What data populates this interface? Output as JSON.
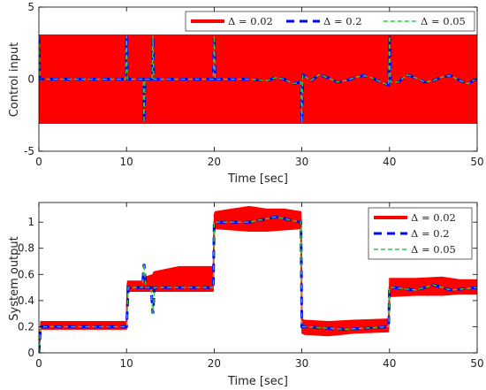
{
  "chart_data": [
    {
      "type": "line",
      "xlabel": "Time [sec]",
      "ylabel": "Control input",
      "xlim": [
        0,
        50
      ],
      "ylim": [
        -5,
        5
      ],
      "xticks": [
        "0",
        "10",
        "20",
        "30",
        "40",
        "50"
      ],
      "yticks": [
        "-5",
        "0",
        "5"
      ],
      "legend_position": "top-right",
      "legend_orientation": "horizontal",
      "grid": false,
      "series": [
        {
          "name": "Δ = 0.02",
          "color": "#ff0000",
          "style": "solid",
          "note_band": [
            -3.1,
            3.1
          ],
          "x": [
            0,
            10,
            12,
            13,
            20,
            25,
            30,
            35,
            40,
            45,
            50
          ],
          "y": [
            0,
            0,
            0,
            0,
            0,
            0,
            0,
            0,
            0,
            0,
            0
          ]
        },
        {
          "name": "Δ = 0.2",
          "color": "#0000ff",
          "style": "dashed",
          "x": [
            0,
            0.1,
            1,
            9.9,
            10,
            10.1,
            11.9,
            12,
            12.1,
            12.9,
            13,
            13.1,
            19.9,
            20,
            20.1,
            24,
            26,
            27,
            28,
            29,
            29.9,
            30,
            30.1,
            31,
            32,
            33,
            34,
            35,
            36,
            37,
            38,
            39,
            39.9,
            40,
            40.1,
            41,
            42,
            43,
            44,
            45,
            46,
            47,
            48,
            49,
            50
          ],
          "y": [
            3.0,
            0,
            0,
            0,
            3.0,
            0,
            0,
            -3.0,
            0,
            0,
            3.0,
            0,
            0,
            3.0,
            0,
            0,
            -0.1,
            0.1,
            0.0,
            -0.3,
            -0.2,
            -3.0,
            0.3,
            -0.1,
            0.3,
            0.1,
            -0.2,
            -0.1,
            0.1,
            0.25,
            0.1,
            -0.2,
            -0.4,
            3.0,
            -0.2,
            -0.2,
            0.3,
            0.1,
            -0.2,
            -0.1,
            0.15,
            0.25,
            -0.1,
            -0.3,
            0.1
          ]
        },
        {
          "name": "Δ = 0.05",
          "color": "#2ecc40",
          "style": "dashed",
          "x": [
            0,
            0.1,
            1,
            9.9,
            10,
            10.1,
            11.9,
            12,
            12.1,
            12.9,
            13,
            13.1,
            19.9,
            20,
            20.1,
            24,
            26,
            27,
            28,
            29,
            29.9,
            30,
            30.1,
            31,
            32,
            33,
            34,
            35,
            36,
            37,
            38,
            39,
            39.9,
            40,
            40.1,
            41,
            42,
            43,
            44,
            45,
            46,
            47,
            48,
            49,
            50
          ],
          "y": [
            3.0,
            0,
            0,
            0,
            3.0,
            0,
            0,
            -3.0,
            0,
            0,
            3.0,
            0,
            0,
            3.0,
            0,
            0,
            -0.1,
            0.1,
            0.0,
            -0.3,
            -0.2,
            -3.0,
            0.3,
            -0.1,
            0.3,
            0.1,
            -0.2,
            -0.1,
            0.1,
            0.25,
            0.1,
            -0.2,
            -0.4,
            3.0,
            -0.2,
            -0.2,
            0.3,
            0.1,
            -0.2,
            -0.1,
            0.15,
            0.25,
            -0.1,
            -0.3,
            0.1
          ]
        }
      ]
    },
    {
      "type": "line",
      "xlabel": "Time [sec]",
      "ylabel": "System output",
      "xlim": [
        0,
        50
      ],
      "ylim": [
        0,
        1.15
      ],
      "xticks": [
        "0",
        "10",
        "20",
        "30",
        "40",
        "50"
      ],
      "yticks": [
        "0",
        "0.2",
        "0.4",
        "0.6",
        "0.8",
        "1"
      ],
      "legend_position": "top-right",
      "legend_orientation": "vertical",
      "grid": false,
      "series": [
        {
          "name": "Δ = 0.02",
          "color": "#ff0000",
          "style": "solid",
          "x": [
            0,
            0.2,
            10,
            10.1,
            12,
            12.1,
            13,
            13.1,
            16,
            17,
            19.9,
            20,
            20.1,
            22,
            24,
            26,
            28,
            29.9,
            30,
            30.3,
            33,
            36,
            39.9,
            40,
            40.2,
            43,
            46,
            48,
            50
          ],
          "y": [
            0,
            0.2,
            0.2,
            0.52,
            0.52,
            0.5,
            0.5,
            0.52,
            0.57,
            0.6,
            0.52,
            1.0,
            1.02,
            1.04,
            1.05,
            1.05,
            1.04,
            1.02,
            0.2,
            0.2,
            0.2,
            0.2,
            0.2,
            0.5,
            0.5,
            0.5,
            0.5,
            0.5,
            0.5
          ],
          "note_band_low": [
            0,
            0.18,
            0.18,
            0.47,
            0.47,
            0.47,
            0.47,
            0.47,
            0.47,
            0.47,
            0.47,
            0.95,
            0.95,
            0.94,
            0.93,
            0.93,
            0.94,
            0.95,
            0.15,
            0.14,
            0.13,
            0.15,
            0.16,
            0.43,
            0.43,
            0.44,
            0.44,
            0.45,
            0.45
          ],
          "note_band_high": [
            0,
            0.24,
            0.24,
            0.55,
            0.55,
            0.58,
            0.6,
            0.62,
            0.66,
            0.66,
            0.66,
            1.06,
            1.08,
            1.1,
            1.12,
            1.1,
            1.1,
            1.08,
            0.26,
            0.25,
            0.24,
            0.25,
            0.26,
            0.57,
            0.57,
            0.57,
            0.58,
            0.56,
            0.56
          ]
        },
        {
          "name": "Δ = 0.2",
          "color": "#0000ff",
          "style": "dashed",
          "x": [
            0,
            0.2,
            10,
            10.2,
            11.8,
            12,
            12.2,
            12.8,
            13,
            13.2,
            19.9,
            20,
            20.3,
            24,
            27,
            29.9,
            30,
            30.4,
            35,
            39.9,
            40,
            40.4,
            43,
            45,
            47,
            50
          ],
          "y": [
            0,
            0.2,
            0.2,
            0.5,
            0.5,
            0.68,
            0.5,
            0.5,
            0.3,
            0.5,
            0.5,
            1.0,
            1.0,
            1.0,
            1.04,
            1.0,
            0.2,
            0.2,
            0.18,
            0.2,
            0.5,
            0.5,
            0.48,
            0.52,
            0.48,
            0.5
          ]
        },
        {
          "name": "Δ = 0.05",
          "color": "#2ecc40",
          "style": "dashed",
          "x": [
            0,
            0.2,
            10,
            10.2,
            11.8,
            12,
            12.2,
            12.8,
            13,
            13.2,
            19.9,
            20,
            20.3,
            24,
            27,
            29.9,
            30,
            30.4,
            35,
            39.9,
            40,
            40.4,
            43,
            45,
            47,
            50
          ],
          "y": [
            0,
            0.2,
            0.2,
            0.5,
            0.5,
            0.68,
            0.5,
            0.5,
            0.3,
            0.5,
            0.5,
            1.0,
            1.0,
            1.0,
            1.04,
            1.0,
            0.2,
            0.2,
            0.18,
            0.2,
            0.5,
            0.5,
            0.48,
            0.52,
            0.48,
            0.5
          ]
        }
      ]
    }
  ]
}
